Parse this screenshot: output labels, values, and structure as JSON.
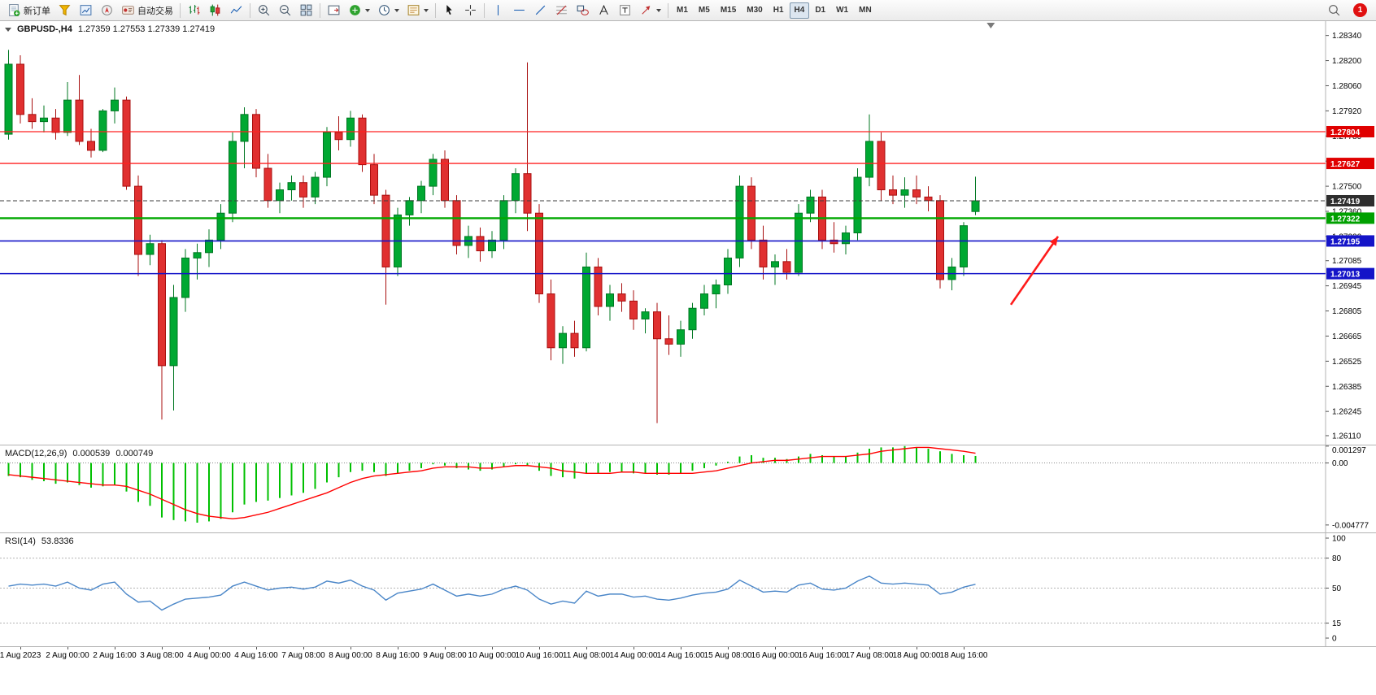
{
  "toolbar": {
    "new_order_label": "新订单",
    "autotrading_label": "自动交易",
    "timeframes": [
      "M1",
      "M5",
      "M15",
      "M30",
      "H1",
      "H4",
      "D1",
      "W1",
      "MN"
    ],
    "active_timeframe": "H4",
    "notification_count": "1"
  },
  "chart": {
    "symbol_label": "GBPUSD-,H4",
    "ohlc_text": "1.27359 1.27553 1.27339 1.27419"
  },
  "chart_data": {
    "type": "candlestick",
    "symbol": "GBPUSD-",
    "period": "H4",
    "ohlc_current": {
      "o": 1.27359,
      "h": 1.27553,
      "l": 1.27339,
      "c": 1.27419
    },
    "colors": {
      "up": "#00a832",
      "up_stroke": "#007722",
      "down": "#e03030",
      "down_stroke": "#a80f0f"
    },
    "price_axis": {
      "range": {
        "max": 1.2842,
        "min": 1.2606
      },
      "ticks": [
        "1.28340",
        "1.28200",
        "1.28060",
        "1.27920",
        "1.27780",
        "1.27640",
        "1.27500",
        "1.27360",
        "1.27220",
        "1.27085",
        "1.26945",
        "1.26805",
        "1.26665",
        "1.26525",
        "1.26385",
        "1.26245",
        "1.26110"
      ]
    },
    "hlines": [
      {
        "name": "resistance-line-1",
        "price": 1.27804,
        "color": "#ff2020",
        "badge": "1.27804",
        "badge_color": "#e00000",
        "width": 1.3
      },
      {
        "name": "resistance-line-2",
        "price": 1.27627,
        "color": "#ff2020",
        "badge": "1.27627",
        "badge_color": "#e00000",
        "width": 1.3
      },
      {
        "name": "current-price-line",
        "price": 1.27419,
        "color": "#3c3c3c",
        "badge": "1.27419",
        "badge_color": "#2e2e2e",
        "width": 1,
        "style": "dash"
      },
      {
        "name": "support-line-green",
        "price": 1.27322,
        "color": "#00a800",
        "badge": "1.27322",
        "badge_color": "#00a000",
        "width": 2.4
      },
      {
        "name": "support-line-blue-1",
        "price": 1.27195,
        "color": "#1414c8",
        "badge": "1.27195",
        "badge_color": "#1414c8",
        "width": 1.6
      },
      {
        "name": "support-line-blue-2",
        "price": 1.27013,
        "color": "#1414c8",
        "badge": "1.27013",
        "badge_color": "#1414c8",
        "width": 1.6
      }
    ],
    "x_labels": [
      "1 Aug 2023",
      "2 Aug 00:00",
      "2 Aug 16:00",
      "3 Aug 08:00",
      "4 Aug 00:00",
      "4 Aug 16:00",
      "7 Aug 08:00",
      "8 Aug 00:00",
      "8 Aug 16:00",
      "9 Aug 08:00",
      "10 Aug 00:00",
      "10 Aug 16:00",
      "11 Aug 08:00",
      "14 Aug 00:00",
      "14 Aug 16:00",
      "15 Aug 08:00",
      "16 Aug 00:00",
      "16 Aug 16:00",
      "17 Aug 08:00",
      "18 Aug 00:00",
      "18 Aug 16:00"
    ],
    "candles": [
      [
        1.2779,
        1.2826,
        1.2776,
        1.2818
      ],
      [
        1.2818,
        1.2823,
        1.2785,
        1.279
      ],
      [
        1.279,
        1.2799,
        1.2782,
        1.2786
      ],
      [
        1.2786,
        1.2795,
        1.278,
        1.2788
      ],
      [
        1.2788,
        1.2793,
        1.2776,
        1.278
      ],
      [
        1.278,
        1.2808,
        1.2778,
        1.2798
      ],
      [
        1.2798,
        1.2812,
        1.2773,
        1.2775
      ],
      [
        1.2775,
        1.2782,
        1.2766,
        1.277
      ],
      [
        1.277,
        1.2793,
        1.2769,
        1.2792
      ],
      [
        1.2792,
        1.2805,
        1.2785,
        1.2798
      ],
      [
        1.2798,
        1.28,
        1.2748,
        1.275
      ],
      [
        1.275,
        1.2756,
        1.27,
        1.2712
      ],
      [
        1.2712,
        1.2723,
        1.2706,
        1.2718
      ],
      [
        1.2718,
        1.272,
        1.262,
        1.265
      ],
      [
        1.265,
        1.2695,
        1.2625,
        1.2688
      ],
      [
        1.2688,
        1.2715,
        1.268,
        1.271
      ],
      [
        1.271,
        1.2718,
        1.2698,
        1.2713
      ],
      [
        1.2713,
        1.2726,
        1.2705,
        1.272
      ],
      [
        1.272,
        1.274,
        1.2715,
        1.2735
      ],
      [
        1.2735,
        1.278,
        1.273,
        1.2775
      ],
      [
        1.2775,
        1.2794,
        1.276,
        1.279
      ],
      [
        1.279,
        1.2793,
        1.2755,
        1.276
      ],
      [
        1.276,
        1.2768,
        1.2738,
        1.2742
      ],
      [
        1.2742,
        1.2752,
        1.2735,
        1.2748
      ],
      [
        1.2748,
        1.2756,
        1.2742,
        1.2752
      ],
      [
        1.2752,
        1.2756,
        1.2738,
        1.2744
      ],
      [
        1.2744,
        1.2758,
        1.274,
        1.2755
      ],
      [
        1.2755,
        1.2783,
        1.275,
        1.278
      ],
      [
        1.278,
        1.2789,
        1.277,
        1.2776
      ],
      [
        1.2776,
        1.2792,
        1.2772,
        1.2788
      ],
      [
        1.2788,
        1.279,
        1.2758,
        1.2762
      ],
      [
        1.2762,
        1.2768,
        1.274,
        1.2745
      ],
      [
        1.2745,
        1.2748,
        1.2684,
        1.2705
      ],
      [
        1.2705,
        1.2738,
        1.27,
        1.2734
      ],
      [
        1.2734,
        1.2744,
        1.2728,
        1.2742
      ],
      [
        1.2742,
        1.2753,
        1.2735,
        1.275
      ],
      [
        1.275,
        1.2768,
        1.2745,
        1.2765
      ],
      [
        1.2765,
        1.277,
        1.2738,
        1.2742
      ],
      [
        1.2742,
        1.2745,
        1.2712,
        1.2717
      ],
      [
        1.2717,
        1.2728,
        1.271,
        1.2722
      ],
      [
        1.2722,
        1.2727,
        1.2708,
        1.2714
      ],
      [
        1.2714,
        1.2725,
        1.271,
        1.272
      ],
      [
        1.272,
        1.2745,
        1.2715,
        1.2742
      ],
      [
        1.2742,
        1.276,
        1.2735,
        1.2757
      ],
      [
        1.2757,
        1.2819,
        1.2725,
        1.2735
      ],
      [
        1.2735,
        1.274,
        1.2685,
        1.269
      ],
      [
        1.269,
        1.2698,
        1.2653,
        1.266
      ],
      [
        1.266,
        1.2672,
        1.2651,
        1.2668
      ],
      [
        1.2668,
        1.2675,
        1.2655,
        1.266
      ],
      [
        1.266,
        1.2713,
        1.2658,
        1.2705
      ],
      [
        1.2705,
        1.271,
        1.2678,
        1.2683
      ],
      [
        1.2683,
        1.2695,
        1.2675,
        1.269
      ],
      [
        1.269,
        1.2696,
        1.268,
        1.2686
      ],
      [
        1.2686,
        1.2692,
        1.267,
        1.2676
      ],
      [
        1.2676,
        1.2682,
        1.2668,
        1.268
      ],
      [
        1.268,
        1.2685,
        1.2618,
        1.2665
      ],
      [
        1.2665,
        1.2678,
        1.2656,
        1.2662
      ],
      [
        1.2662,
        1.2675,
        1.2655,
        1.267
      ],
      [
        1.267,
        1.2685,
        1.2665,
        1.2682
      ],
      [
        1.2682,
        1.2695,
        1.2678,
        1.269
      ],
      [
        1.269,
        1.2698,
        1.2682,
        1.2695
      ],
      [
        1.2695,
        1.2715,
        1.269,
        1.271
      ],
      [
        1.271,
        1.2756,
        1.2705,
        1.275
      ],
      [
        1.275,
        1.2755,
        1.2715,
        1.272
      ],
      [
        1.272,
        1.2728,
        1.2698,
        1.2705
      ],
      [
        1.2705,
        1.2712,
        1.2695,
        1.2708
      ],
      [
        1.2708,
        1.2715,
        1.2698,
        1.2702
      ],
      [
        1.2702,
        1.274,
        1.27,
        1.2735
      ],
      [
        1.2735,
        1.2748,
        1.273,
        1.2744
      ],
      [
        1.2744,
        1.2748,
        1.2715,
        1.272
      ],
      [
        1.272,
        1.273,
        1.2713,
        1.2718
      ],
      [
        1.2718,
        1.2728,
        1.2712,
        1.2724
      ],
      [
        1.2724,
        1.276,
        1.272,
        1.2755
      ],
      [
        1.2755,
        1.279,
        1.275,
        1.2775
      ],
      [
        1.2775,
        1.278,
        1.2742,
        1.2748
      ],
      [
        1.2748,
        1.2756,
        1.274,
        1.2745
      ],
      [
        1.2745,
        1.2755,
        1.2738,
        1.2748
      ],
      [
        1.2748,
        1.2756,
        1.274,
        1.2744
      ],
      [
        1.2744,
        1.275,
        1.2736,
        1.2742
      ],
      [
        1.2742,
        1.2745,
        1.2693,
        1.2698
      ],
      [
        1.2698,
        1.271,
        1.2692,
        1.2705
      ],
      [
        1.2705,
        1.273,
        1.27,
        1.2728
      ],
      [
        1.27359,
        1.27553,
        1.27339,
        1.27419
      ]
    ],
    "annotations": {
      "shift_marker_index": 83.3,
      "trend_arrow": {
        "from": {
          "index": 85,
          "price": 1.2684
        },
        "to": {
          "index": 89,
          "price": 1.2722
        },
        "color": "#ff1a1a"
      }
    },
    "macd": {
      "label": "MACD(12,26,9)",
      "value_main": "0.000539",
      "value_signal": "0.000749",
      "axis_ticks": [
        "0.001297",
        "0.00",
        "-0.004777"
      ],
      "range": {
        "max": 0.00135,
        "min": -0.00535
      },
      "colors": {
        "histogram": "#00c000",
        "signal": "#ff0000"
      },
      "histogram": [
        -0.001,
        -0.0011,
        -0.0013,
        -0.0014,
        -0.0016,
        -0.0015,
        -0.0017,
        -0.0019,
        -0.0018,
        -0.0017,
        -0.0022,
        -0.003,
        -0.0033,
        -0.0042,
        -0.0044,
        -0.0045,
        -0.0046,
        -0.0045,
        -0.0043,
        -0.0038,
        -0.0032,
        -0.003,
        -0.0029,
        -0.0027,
        -0.0025,
        -0.0023,
        -0.002,
        -0.0015,
        -0.0011,
        -0.0007,
        -0.0006,
        -0.0007,
        -0.001,
        -0.0008,
        -0.0006,
        -0.0004,
        -0.0001,
        -0.0002,
        -0.0004,
        -0.0005,
        -0.0006,
        -0.0005,
        -0.0003,
        -0.0001,
        -0.0002,
        -0.0006,
        -0.001,
        -0.0011,
        -0.0012,
        -0.0008,
        -0.0008,
        -0.0007,
        -0.0007,
        -0.0008,
        -0.0008,
        -0.0009,
        -0.0009,
        -0.0008,
        -0.0006,
        -0.0004,
        -0.0002,
        0.0001,
        0.0005,
        0.0006,
        0.0004,
        0.0004,
        0.0003,
        0.0005,
        0.0007,
        0.0006,
        0.0005,
        0.0005,
        0.0008,
        0.0011,
        0.0012,
        0.0012,
        0.0013,
        0.0012,
        0.0011,
        0.0009,
        0.0007,
        0.0006,
        0.000539
      ],
      "signal": [
        -0.0009,
        -0.001,
        -0.0011,
        -0.0012,
        -0.0013,
        -0.0014,
        -0.0015,
        -0.0016,
        -0.0017,
        -0.0017,
        -0.0018,
        -0.0021,
        -0.0024,
        -0.0028,
        -0.0032,
        -0.0036,
        -0.0039,
        -0.0041,
        -0.0042,
        -0.0043,
        -0.0042,
        -0.004,
        -0.0038,
        -0.0035,
        -0.0032,
        -0.0029,
        -0.0026,
        -0.0023,
        -0.0019,
        -0.0015,
        -0.0012,
        -0.001,
        -0.0009,
        -0.0008,
        -0.0007,
        -0.0006,
        -0.0004,
        -0.0003,
        -0.0003,
        -0.0003,
        -0.0004,
        -0.0004,
        -0.0003,
        -0.0002,
        -0.0002,
        -0.0003,
        -0.0004,
        -0.0006,
        -0.0007,
        -0.0008,
        -0.0008,
        -0.0008,
        -0.0007,
        -0.0007,
        -0.0008,
        -0.0008,
        -0.0008,
        -0.0008,
        -0.0008,
        -0.0007,
        -0.0006,
        -0.0004,
        -0.0002,
        0.0,
        0.0001,
        0.0002,
        0.0002,
        0.0003,
        0.0004,
        0.0005,
        0.0005,
        0.0005,
        0.0006,
        0.0007,
        0.0009,
        0.001,
        0.0011,
        0.0012,
        0.0012,
        0.0011,
        0.001,
        0.0009,
        0.000749
      ]
    },
    "rsi": {
      "label": "RSI(14)",
      "value_text": "53.8336",
      "axis_ticks": [
        "100",
        "80",
        "50",
        "15",
        "0"
      ],
      "levels": [
        80,
        50,
        15
      ],
      "range": {
        "max": 100,
        "min": 0
      },
      "color": "#4a86c8",
      "values": [
        52,
        54,
        53,
        54,
        52,
        56,
        50,
        48,
        54,
        56,
        44,
        36,
        37,
        28,
        34,
        39,
        40,
        41,
        43,
        52,
        56,
        52,
        48,
        50,
        51,
        49,
        51,
        57,
        55,
        58,
        52,
        48,
        38,
        45,
        47,
        49,
        54,
        48,
        42,
        44,
        42,
        44,
        49,
        52,
        48,
        39,
        34,
        37,
        35,
        47,
        42,
        44,
        44,
        41,
        42,
        39,
        38,
        40,
        43,
        45,
        46,
        49,
        58,
        52,
        46,
        47,
        46,
        53,
        55,
        49,
        48,
        50,
        57,
        62,
        55,
        54,
        55,
        54,
        53,
        44,
        46,
        51,
        53.8336
      ]
    }
  }
}
